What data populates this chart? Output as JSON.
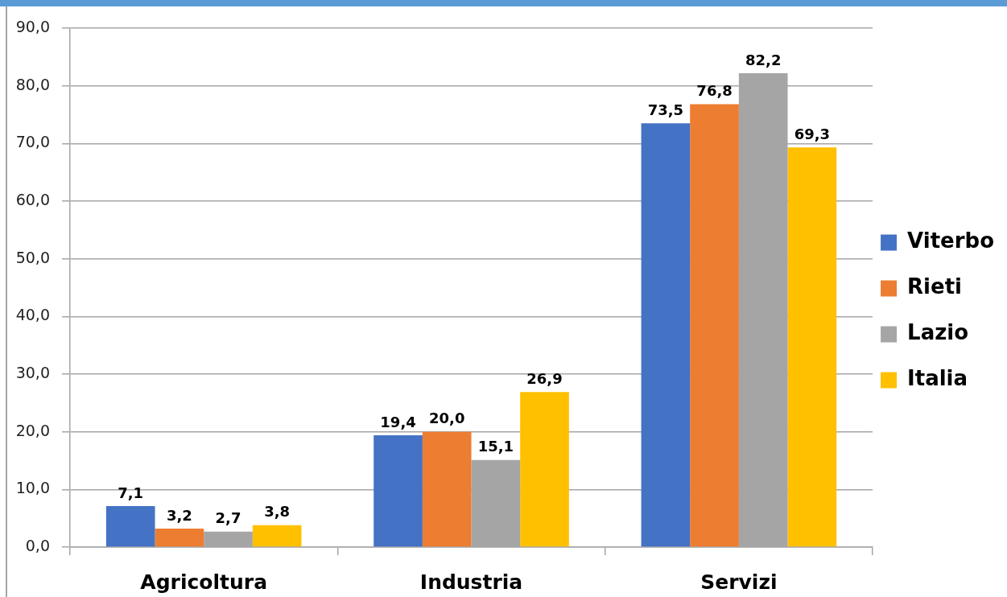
{
  "chart_data": {
    "type": "bar",
    "categories": [
      "Agricoltura",
      "Industria",
      "Servizi"
    ],
    "series": [
      {
        "name": "Viterbo",
        "color": "#4472c4",
        "values": [
          7.1,
          19.4,
          73.5
        ],
        "value_labels": [
          "7,1",
          "19,4",
          "73,5"
        ]
      },
      {
        "name": "Rieti",
        "color": "#ed7d31",
        "values": [
          3.2,
          20.0,
          76.8
        ],
        "value_labels": [
          "3,2",
          "20,0",
          "76,8"
        ]
      },
      {
        "name": "Lazio",
        "color": "#a5a5a5",
        "values": [
          2.7,
          15.1,
          82.2
        ],
        "value_labels": [
          "2,7",
          "15,1",
          "82,2"
        ]
      },
      {
        "name": "Italia",
        "color": "#ffc000",
        "values": [
          3.8,
          26.9,
          69.3
        ],
        "value_labels": [
          "3,8",
          "26,9",
          "69,3"
        ]
      }
    ],
    "ylim": [
      0,
      90
    ],
    "yticks": [
      {
        "value": 0,
        "label": "0,0"
      },
      {
        "value": 10,
        "label": "10,0"
      },
      {
        "value": 20,
        "label": "20,0"
      },
      {
        "value": 30,
        "label": "30,0"
      },
      {
        "value": 40,
        "label": "40,0"
      },
      {
        "value": 50,
        "label": "50,0"
      },
      {
        "value": 60,
        "label": "60,0"
      },
      {
        "value": 70,
        "label": "70,0"
      },
      {
        "value": 80,
        "label": "80,0"
      },
      {
        "value": 90,
        "label": "90,0"
      }
    ],
    "grid": "y",
    "legend": "right"
  }
}
